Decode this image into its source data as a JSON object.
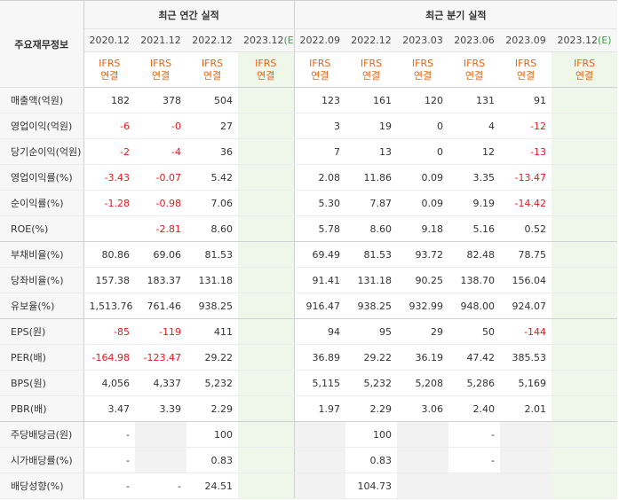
{
  "header": {
    "corner_label": "주요재무정보",
    "annual_title": "최근 연간 실적",
    "quarter_title": "최근 분기 실적",
    "periods": [
      "2020.12",
      "2021.12",
      "2022.12",
      "2023.12",
      "2022.09",
      "2022.12",
      "2023.03",
      "2023.06",
      "2023.09",
      "2023.12"
    ],
    "estimate_mark": "(E)",
    "ifrs": "IFRS",
    "consolidated": "연결"
  },
  "rows": [
    {
      "label": "매출액(억원)",
      "values": [
        "182",
        "378",
        "504",
        "",
        "123",
        "161",
        "120",
        "131",
        "91",
        ""
      ]
    },
    {
      "label": "영업이익(억원)",
      "values": [
        "-6",
        "-0",
        "27",
        "",
        "3",
        "19",
        "0",
        "4",
        "-12",
        ""
      ]
    },
    {
      "label": "당기순이익(억원)",
      "values": [
        "-2",
        "-4",
        "36",
        "",
        "7",
        "13",
        "0",
        "12",
        "-13",
        ""
      ]
    },
    {
      "label": "영업이익률(%)",
      "values": [
        "-3.43",
        "-0.07",
        "5.42",
        "",
        "2.08",
        "11.86",
        "0.09",
        "3.35",
        "-13.47",
        ""
      ]
    },
    {
      "label": "순이익률(%)",
      "values": [
        "-1.28",
        "-0.98",
        "7.06",
        "",
        "5.30",
        "7.87",
        "0.09",
        "9.19",
        "-14.42",
        ""
      ]
    },
    {
      "label": "ROE(%)",
      "values": [
        "",
        "-2.81",
        "8.60",
        "",
        "5.78",
        "8.60",
        "9.18",
        "5.16",
        "0.52",
        ""
      ]
    },
    {
      "label": "부채비율(%)",
      "values": [
        "80.86",
        "69.06",
        "81.53",
        "",
        "69.49",
        "81.53",
        "93.72",
        "82.48",
        "78.75",
        ""
      ]
    },
    {
      "label": "당좌비율(%)",
      "values": [
        "157.38",
        "183.37",
        "131.18",
        "",
        "91.41",
        "131.18",
        "90.25",
        "138.70",
        "156.04",
        ""
      ]
    },
    {
      "label": "유보율(%)",
      "values": [
        "1,513.76",
        "761.46",
        "938.25",
        "",
        "916.47",
        "938.25",
        "932.99",
        "948.00",
        "924.07",
        ""
      ]
    },
    {
      "label": "EPS(원)",
      "values": [
        "-85",
        "-119",
        "411",
        "",
        "94",
        "95",
        "29",
        "50",
        "-144",
        ""
      ]
    },
    {
      "label": "PER(배)",
      "values": [
        "-164.98",
        "-123.47",
        "29.22",
        "",
        "36.89",
        "29.22",
        "36.19",
        "47.42",
        "385.53",
        ""
      ]
    },
    {
      "label": "BPS(원)",
      "values": [
        "4,056",
        "4,337",
        "5,232",
        "",
        "5,115",
        "5,232",
        "5,208",
        "5,286",
        "5,169",
        ""
      ]
    },
    {
      "label": "PBR(배)",
      "values": [
        "3.47",
        "3.39",
        "2.29",
        "",
        "1.97",
        "2.29",
        "3.06",
        "2.40",
        "2.01",
        ""
      ]
    },
    {
      "label": "주당배당금(원)",
      "values": [
        "-",
        "",
        "100",
        "",
        "",
        "100",
        "",
        "-",
        "",
        ""
      ]
    },
    {
      "label": "시가배당률(%)",
      "values": [
        "-",
        "",
        "0.83",
        "",
        "",
        "0.83",
        "",
        "-",
        "",
        ""
      ]
    },
    {
      "label": "배당성향(%)",
      "values": [
        "-",
        "-",
        "24.51",
        "",
        "",
        "104.73",
        "",
        "",
        "",
        ""
      ]
    }
  ]
}
